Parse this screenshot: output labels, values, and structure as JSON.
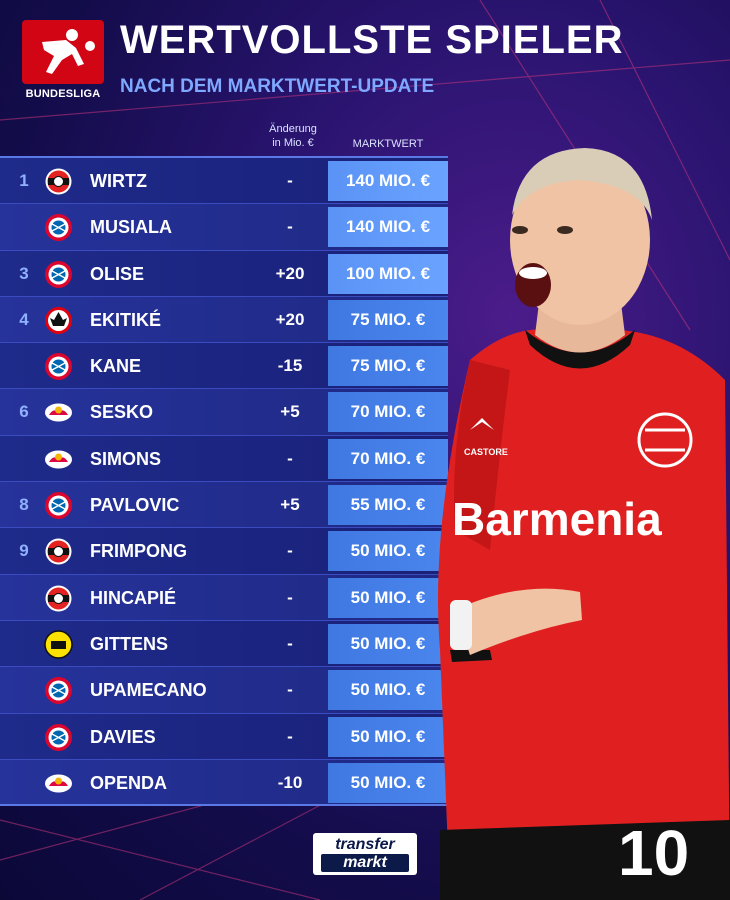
{
  "header": {
    "league_label": "BUNDESLIGA",
    "title": "WERTVOLLSTE SPIELER",
    "subtitle": "NACH DEM MARKTWERT-UPDATE"
  },
  "columns": {
    "change_line1": "Änderung",
    "change_line2": "in Mio. €",
    "value": "MARKTWERT"
  },
  "players": [
    {
      "rank": "1",
      "club": "leverkusen-crest",
      "name": "WIRTZ",
      "change": "-",
      "value": "140 MIO. €"
    },
    {
      "rank": "",
      "club": "bayern-crest",
      "name": "MUSIALA",
      "change": "-",
      "value": "140 MIO. €"
    },
    {
      "rank": "3",
      "club": "bayern-crest",
      "name": "OLISE",
      "change": "+20",
      "value": "100 MIO. €"
    },
    {
      "rank": "4",
      "club": "frankfurt-crest",
      "name": "EKITIKÉ",
      "change": "+20",
      "value": "75 MIO. €"
    },
    {
      "rank": "",
      "club": "bayern-crest",
      "name": "KANE",
      "change": "-15",
      "value": "75 MIO. €"
    },
    {
      "rank": "6",
      "club": "leipzig-crest",
      "name": "SESKO",
      "change": "+5",
      "value": "70 MIO. €"
    },
    {
      "rank": "",
      "club": "leipzig-crest",
      "name": "SIMONS",
      "change": "-",
      "value": "70 MIO. €"
    },
    {
      "rank": "8",
      "club": "bayern-crest",
      "name": "PAVLOVIC",
      "change": "+5",
      "value": "55 MIO. €"
    },
    {
      "rank": "9",
      "club": "leverkusen-crest",
      "name": "FRIMPONG",
      "change": "-",
      "value": "50 MIO. €"
    },
    {
      "rank": "",
      "club": "leverkusen-crest",
      "name": "HINCAPIÉ",
      "change": "-",
      "value": "50 MIO. €"
    },
    {
      "rank": "",
      "club": "dortmund-crest",
      "name": "GITTENS",
      "change": "-",
      "value": "50 MIO. €"
    },
    {
      "rank": "",
      "club": "bayern-crest",
      "name": "UPAMECANO",
      "change": "-",
      "value": "50 MIO. €"
    },
    {
      "rank": "",
      "club": "bayern-crest",
      "name": "DAVIES",
      "change": "-",
      "value": "50 MIO. €"
    },
    {
      "rank": "",
      "club": "leipzig-crest",
      "name": "OPENDA",
      "change": "-10",
      "value": "50 MIO. €"
    }
  ],
  "photo": {
    "sponsor": "Barmenia",
    "kit_brand": "CASTORE",
    "shirt_number": "10"
  },
  "footer": {
    "logo_line1": "transfer",
    "logo_line2": "markt"
  },
  "colors": {
    "bundesliga_red": "#d20515",
    "accent_blue": "#7fa8ff",
    "value_cell": "#4a86ee",
    "leverkusen_red": "#e32221",
    "bayern_red": "#dc052d",
    "dortmund_yellow": "#fde100"
  }
}
